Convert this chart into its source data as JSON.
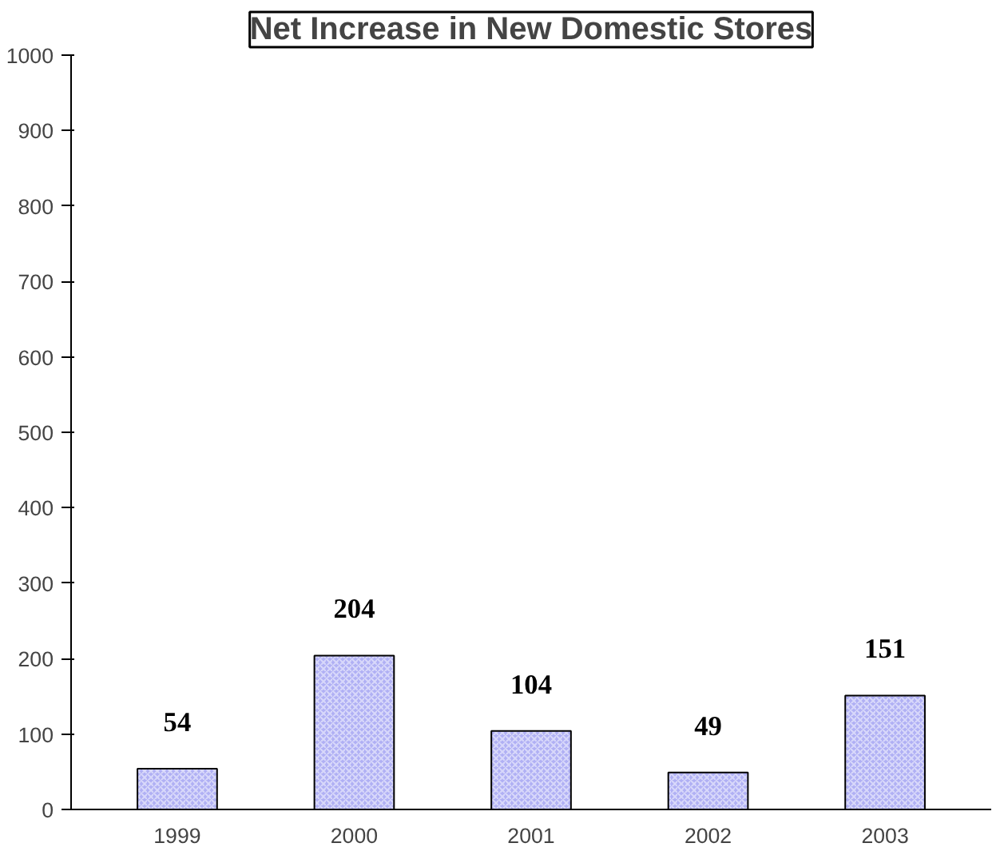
{
  "chart_data": {
    "type": "bar",
    "title": "Net Increase in New Domestic Stores",
    "categories": [
      "1999",
      "2000",
      "2001",
      "2002",
      "2003"
    ],
    "values": [
      54,
      204,
      104,
      49,
      151
    ],
    "color": "#b0b0f4",
    "ylim": [
      0,
      1000
    ],
    "yticks": [
      0,
      100,
      200,
      300,
      400,
      500,
      600,
      700,
      800,
      900,
      1000
    ],
    "data_labels": true
  }
}
